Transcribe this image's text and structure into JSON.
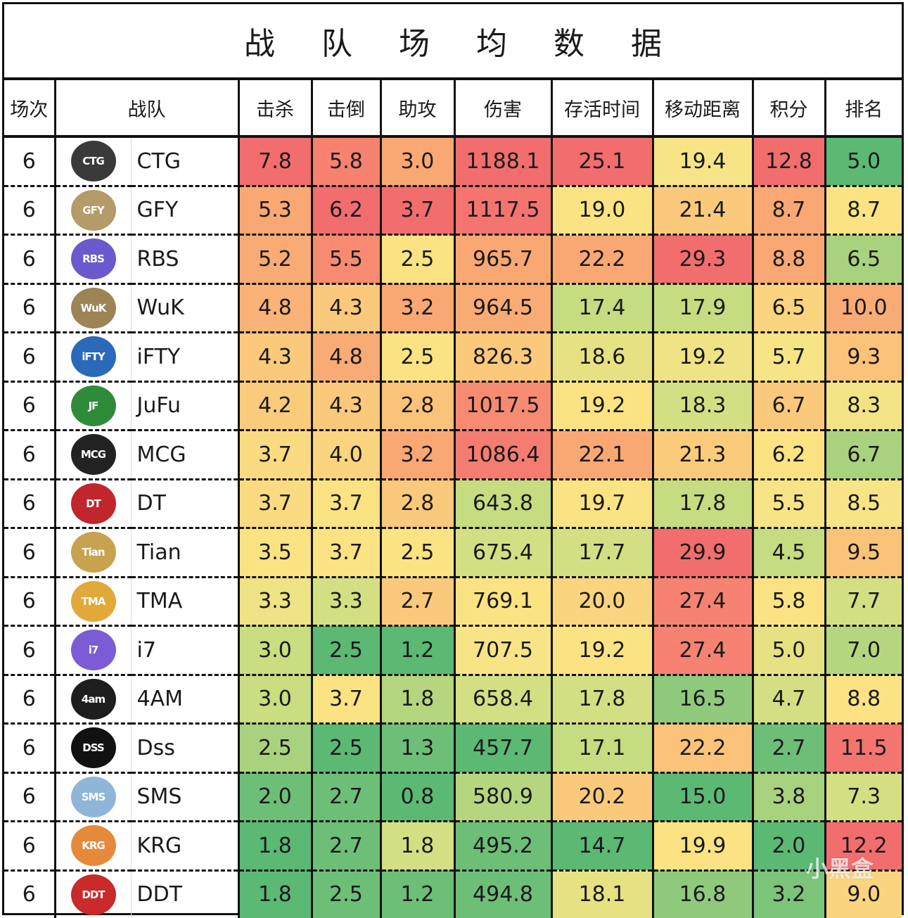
{
  "title": "战 队 场 均 数 据",
  "headers": [
    "场次",
    "战队",
    "击杀",
    "击倒",
    "助攻",
    "伤害",
    "存活时间",
    "移动距离",
    "积分",
    "排名"
  ],
  "palette": {
    "red": "#f26d6d",
    "red_orange": "#f78b72",
    "orange": "#f9a874",
    "light_orange": "#fbc97b",
    "yellow": "#fbe383",
    "yellow_green": "#d4df84",
    "light_green": "#a9d27e",
    "green": "#6dbf78",
    "deep_green": "#5bb974"
  },
  "rows": [
    {
      "matches": "6",
      "team": "CTG",
      "logo": {
        "abbr": "CTG",
        "color": "#3a3a3a"
      },
      "kills": "7.8",
      "knocks": "5.8",
      "assists": "3.0",
      "damage": "1188.1",
      "survival": "25.1",
      "distance": "19.4",
      "points": "12.8",
      "rank": "5.0",
      "colors": [
        "#f26d6d",
        "#f78270",
        "#f9a874",
        "#f26d6d",
        "#f26d6d",
        "#f7e487",
        "#f26d6d",
        "#5bb974"
      ]
    },
    {
      "matches": "6",
      "team": "GFY",
      "logo": {
        "abbr": "GFY",
        "color": "#b59a6a"
      },
      "kills": "5.3",
      "knocks": "6.2",
      "assists": "3.7",
      "damage": "1117.5",
      "survival": "19.0",
      "distance": "21.4",
      "points": "8.7",
      "rank": "8.7",
      "colors": [
        "#f9a874",
        "#f26d6d",
        "#f26d6d",
        "#f47470",
        "#fbe383",
        "#fbc97b",
        "#f9a874",
        "#fbe383"
      ]
    },
    {
      "matches": "6",
      "team": "RBS",
      "logo": {
        "abbr": "RBS",
        "color": "#6a5acd"
      },
      "kills": "5.2",
      "knocks": "5.5",
      "assists": "2.5",
      "damage": "965.7",
      "survival": "22.2",
      "distance": "29.3",
      "points": "8.8",
      "rank": "6.5",
      "colors": [
        "#f9ab75",
        "#f78b72",
        "#fbe383",
        "#f9a874",
        "#f9a874",
        "#f26d6d",
        "#f9a874",
        "#a9d27e"
      ]
    },
    {
      "matches": "6",
      "team": "WuK",
      "logo": {
        "abbr": "WuK",
        "color": "#9c8457"
      },
      "kills": "4.8",
      "knocks": "4.3",
      "assists": "3.2",
      "damage": "964.5",
      "survival": "17.4",
      "distance": "17.9",
      "points": "6.5",
      "rank": "10.0",
      "colors": [
        "#f9b277",
        "#fbc97b",
        "#f9a874",
        "#f9ab75",
        "#c5dc80",
        "#c5dc80",
        "#fbd47f",
        "#f9ab75"
      ]
    },
    {
      "matches": "6",
      "team": "iFTY",
      "logo": {
        "abbr": "iFTY",
        "color": "#2a6ab8"
      },
      "kills": "4.3",
      "knocks": "4.8",
      "assists": "2.5",
      "damage": "826.3",
      "survival": "18.6",
      "distance": "19.2",
      "points": "5.7",
      "rank": "9.3",
      "colors": [
        "#fbc97b",
        "#f9ab75",
        "#fbe383",
        "#fbc97b",
        "#e6e284",
        "#f0e385",
        "#f7e487",
        "#fbc27a"
      ]
    },
    {
      "matches": "6",
      "team": "JuFu",
      "logo": {
        "abbr": "JF",
        "color": "#2e8b3a"
      },
      "kills": "4.2",
      "knocks": "4.3",
      "assists": "2.8",
      "damage": "1017.5",
      "survival": "19.2",
      "distance": "18.3",
      "points": "6.7",
      "rank": "8.3",
      "colors": [
        "#fbcb7c",
        "#fbc97b",
        "#fbc27a",
        "#f78b72",
        "#fbe383",
        "#d4df84",
        "#fbc97b",
        "#f2e485"
      ]
    },
    {
      "matches": "6",
      "team": "MCG",
      "logo": {
        "abbr": "MCG",
        "color": "#222222"
      },
      "kills": "3.7",
      "knocks": "4.0",
      "assists": "3.2",
      "damage": "1086.4",
      "survival": "22.1",
      "distance": "21.3",
      "points": "6.2",
      "rank": "6.7",
      "colors": [
        "#fbdb81",
        "#fbd47f",
        "#f9a874",
        "#f47c70",
        "#f9a874",
        "#fbcb7c",
        "#fbe383",
        "#a9d27e"
      ]
    },
    {
      "matches": "6",
      "team": "DT",
      "logo": {
        "abbr": "DT",
        "color": "#c0262b"
      },
      "kills": "3.7",
      "knocks": "3.7",
      "assists": "2.8",
      "damage": "643.8",
      "survival": "19.7",
      "distance": "17.8",
      "points": "5.5",
      "rank": "8.5",
      "colors": [
        "#fbdb81",
        "#fbe383",
        "#fbc97b",
        "#c5dc80",
        "#fbe383",
        "#c5dc80",
        "#f7e487",
        "#f7e487"
      ]
    },
    {
      "matches": "6",
      "team": "Tian",
      "logo": {
        "abbr": "Tian",
        "color": "#c9a24f"
      },
      "kills": "3.5",
      "knocks": "3.7",
      "assists": "2.5",
      "damage": "675.4",
      "survival": "17.7",
      "distance": "29.9",
      "points": "4.5",
      "rank": "9.5",
      "colors": [
        "#fbe383",
        "#fbe383",
        "#fbe383",
        "#d4df84",
        "#d4df84",
        "#f26d6d",
        "#c5dc80",
        "#fbc27a"
      ]
    },
    {
      "matches": "6",
      "team": "TMA",
      "logo": {
        "abbr": "TMA",
        "color": "#e3a83a"
      },
      "kills": "3.3",
      "knocks": "3.3",
      "assists": "2.7",
      "damage": "769.1",
      "survival": "20.0",
      "distance": "27.4",
      "points": "5.8",
      "rank": "7.7",
      "colors": [
        "#eee385",
        "#d4df84",
        "#fbc97b",
        "#fbe383",
        "#fbd47f",
        "#f78272",
        "#fbe383",
        "#d4df84"
      ]
    },
    {
      "matches": "6",
      "team": "i7",
      "logo": {
        "abbr": "i7",
        "color": "#7b5bd6"
      },
      "kills": "3.0",
      "knocks": "2.5",
      "assists": "1.2",
      "damage": "707.5",
      "survival": "19.2",
      "distance": "27.4",
      "points": "5.0",
      "rank": "7.0",
      "colors": [
        "#c9dd81",
        "#5bb974",
        "#5bb974",
        "#f7e487",
        "#fbe383",
        "#f78272",
        "#e6e284",
        "#b5d67f"
      ]
    },
    {
      "matches": "6",
      "team": "4AM",
      "logo": {
        "abbr": "4am",
        "color": "#1e1e1e"
      },
      "kills": "3.0",
      "knocks": "3.7",
      "assists": "1.8",
      "damage": "658.4",
      "survival": "17.8",
      "distance": "16.5",
      "points": "4.7",
      "rank": "8.8",
      "colors": [
        "#c9dd81",
        "#fbe383",
        "#b5d67f",
        "#d4df84",
        "#d4df84",
        "#8fca7c",
        "#d4df84",
        "#fbe383"
      ]
    },
    {
      "matches": "6",
      "team": "Dss",
      "logo": {
        "abbr": "DSS",
        "color": "#111111"
      },
      "kills": "2.5",
      "knocks": "2.5",
      "assists": "1.3",
      "damage": "457.7",
      "survival": "17.1",
      "distance": "22.2",
      "points": "2.7",
      "rank": "11.5",
      "colors": [
        "#a9d27e",
        "#5bb974",
        "#6dbf78",
        "#5bb974",
        "#c5dc80",
        "#fbc27a",
        "#6dbf78",
        "#f47470"
      ]
    },
    {
      "matches": "6",
      "team": "SMS",
      "logo": {
        "abbr": "SMS",
        "color": "#8fb6d9"
      },
      "kills": "2.0",
      "knocks": "2.7",
      "assists": "0.8",
      "damage": "580.9",
      "survival": "20.2",
      "distance": "15.0",
      "points": "3.8",
      "rank": "7.3",
      "colors": [
        "#6dbf78",
        "#6dbf78",
        "#5bb974",
        "#b5d67f",
        "#fbc97b",
        "#5bb974",
        "#a9d27e",
        "#d4df84"
      ]
    },
    {
      "matches": "6",
      "team": "KRG",
      "logo": {
        "abbr": "KRG",
        "color": "#e58a3b"
      },
      "kills": "1.8",
      "knocks": "2.7",
      "assists": "1.8",
      "damage": "495.2",
      "survival": "14.7",
      "distance": "19.9",
      "points": "2.0",
      "rank": "12.2",
      "colors": [
        "#5bb974",
        "#6dbf78",
        "#d4df84",
        "#6dbf78",
        "#5bb974",
        "#fbe383",
        "#5bb974",
        "#f26d6d"
      ]
    },
    {
      "matches": "6",
      "team": "DDT",
      "logo": {
        "abbr": "DDT",
        "color": "#c92a2a"
      },
      "kills": "1.8",
      "knocks": "2.5",
      "assists": "1.2",
      "damage": "494.8",
      "survival": "18.1",
      "distance": "16.8",
      "points": "3.2",
      "rank": "9.0",
      "colors": [
        "#5bb974",
        "#6dbf78",
        "#6dbf78",
        "#6dbf78",
        "#e6e284",
        "#8fca7c",
        "#7cc47a",
        "#fbd47f"
      ]
    }
  ],
  "watermark": "小黑盒"
}
